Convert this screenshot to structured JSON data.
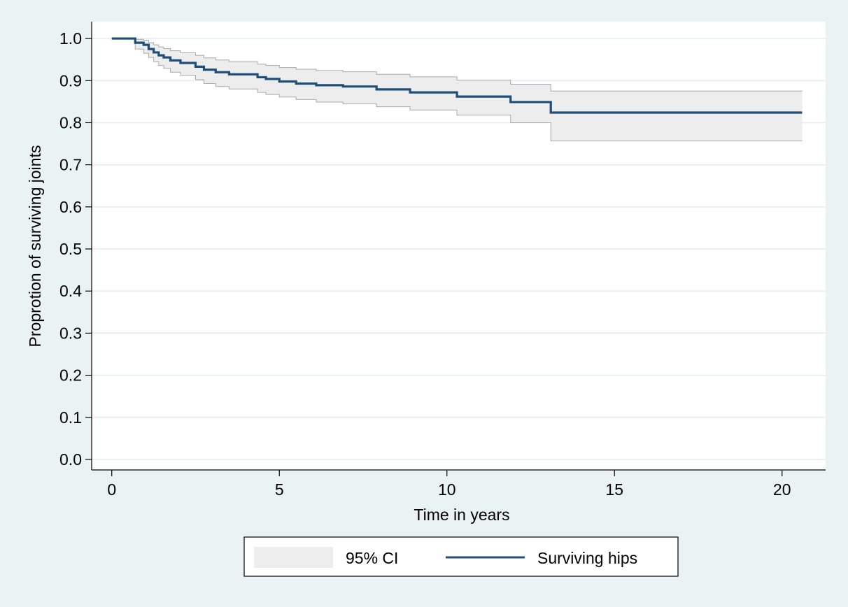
{
  "chart_data": {
    "type": "line",
    "title": "",
    "xlabel": "Time in years",
    "ylabel": "Proprotion of surviving joints",
    "xlim": [
      -0.6,
      21.3
    ],
    "ylim": [
      -0.025,
      1.04
    ],
    "x_ticks": [
      0,
      5,
      10,
      15,
      20
    ],
    "x_tick_labels": [
      "0",
      "5",
      "10",
      "15",
      "20"
    ],
    "y_ticks": [
      0.0,
      0.1,
      0.2,
      0.3,
      0.4,
      0.5,
      0.6,
      0.7,
      0.8,
      0.9,
      1.0
    ],
    "y_tick_labels": [
      "0.0",
      "0.1",
      "0.2",
      "0.3",
      "0.4",
      "0.5",
      "0.6",
      "0.7",
      "0.8",
      "0.9",
      "1.0"
    ],
    "grid": "horizontal",
    "legend": {
      "position": "bottom",
      "entries": [
        "95% CI",
        "Surviving hips"
      ]
    },
    "colors": {
      "line": "#1f4e79",
      "ci_fill": "#ededed",
      "ci_edge": "#a9a9a9",
      "plot_bg": "#ffffff",
      "outer_bg": "#eaf2f3",
      "grid": "#e8f0f2"
    },
    "series": [
      {
        "name": "Surviving hips",
        "x": [
          0,
          0.6,
          0.7,
          0.95,
          1.1,
          1.25,
          1.4,
          1.55,
          1.75,
          2.05,
          2.5,
          2.75,
          3.1,
          3.5,
          4.35,
          4.6,
          5.0,
          5.5,
          6.1,
          6.9,
          7.9,
          8.9,
          10.3,
          11.9,
          13.1,
          20.6
        ],
        "y": [
          1.0,
          1.0,
          0.99,
          0.985,
          0.975,
          0.967,
          0.96,
          0.955,
          0.948,
          0.942,
          0.933,
          0.926,
          0.92,
          0.915,
          0.908,
          0.904,
          0.898,
          0.893,
          0.889,
          0.886,
          0.879,
          0.872,
          0.862,
          0.849,
          0.824,
          0.824
        ]
      },
      {
        "name": "95% CI",
        "x": [
          0,
          0.6,
          0.7,
          0.95,
          1.1,
          1.25,
          1.4,
          1.55,
          1.75,
          2.05,
          2.5,
          2.75,
          3.1,
          3.5,
          4.35,
          4.6,
          5.0,
          5.5,
          6.1,
          6.9,
          7.9,
          8.9,
          10.3,
          11.9,
          13.1,
          20.6
        ],
        "upper": [
          1.0,
          1.0,
          0.998,
          0.996,
          0.99,
          0.985,
          0.98,
          0.976,
          0.971,
          0.966,
          0.96,
          0.954,
          0.949,
          0.945,
          0.939,
          0.936,
          0.931,
          0.927,
          0.924,
          0.921,
          0.915,
          0.909,
          0.901,
          0.891,
          0.875,
          0.875
        ],
        "lower": [
          1.0,
          1.0,
          0.975,
          0.965,
          0.955,
          0.945,
          0.936,
          0.929,
          0.92,
          0.913,
          0.902,
          0.893,
          0.886,
          0.88,
          0.872,
          0.867,
          0.861,
          0.855,
          0.849,
          0.845,
          0.838,
          0.83,
          0.818,
          0.8,
          0.757,
          0.757
        ]
      }
    ]
  }
}
